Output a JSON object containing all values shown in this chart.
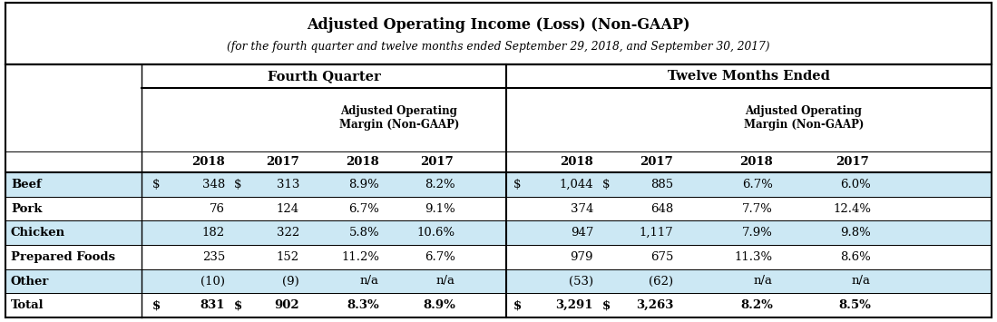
{
  "title_line1": "Adjusted Operating Income (Loss) (Non-GAAP)",
  "title_line2": "(for the fourth quarter and twelve months ended September 29, 2018, and September 30, 2017)",
  "col_group_headers": [
    "Fourth Quarter",
    "Twelve Months Ended"
  ],
  "row_labels": [
    "Beef",
    "Pork",
    "Chicken",
    "Prepared Foods",
    "Other",
    "Total"
  ],
  "fq_dollar": [
    "$",
    "",
    "",
    "",
    "",
    "$"
  ],
  "fq_2018": [
    "348",
    "76",
    "182",
    "235",
    "(10)",
    "831"
  ],
  "fq_dollar2": [
    "$",
    "",
    "",
    "",
    "",
    "$"
  ],
  "fq_2017": [
    "313",
    "124",
    "322",
    "152",
    "(9)",
    "902"
  ],
  "fq_margin_2018": [
    "8.9%",
    "6.7%",
    "5.8%",
    "11.2%",
    "n/a",
    "8.3%"
  ],
  "fq_margin_2017": [
    "8.2%",
    "9.1%",
    "10.6%",
    "6.7%",
    "n/a",
    "8.9%"
  ],
  "tm_dollar": [
    "$",
    "",
    "",
    "",
    "",
    "$"
  ],
  "tm_2018": [
    "1,044",
    "374",
    "947",
    "979",
    "(53)",
    "3,291"
  ],
  "tm_dollar2": [
    "$",
    "",
    "",
    "",
    "",
    "$"
  ],
  "tm_2017": [
    "885",
    "648",
    "1,117",
    "675",
    "(62)",
    "3,263"
  ],
  "tm_margin_2018": [
    "6.7%",
    "7.7%",
    "7.9%",
    "11.3%",
    "n/a",
    "8.2%"
  ],
  "tm_margin_2017": [
    "6.0%",
    "12.4%",
    "9.8%",
    "8.6%",
    "n/a",
    "8.5%"
  ],
  "bg_light": "#cce8f4",
  "bg_white": "#ffffff",
  "text_dark": "#000000",
  "row_bg": [
    "#cce8f4",
    "#ffffff",
    "#cce8f4",
    "#ffffff",
    "#cce8f4",
    "#ffffff"
  ]
}
